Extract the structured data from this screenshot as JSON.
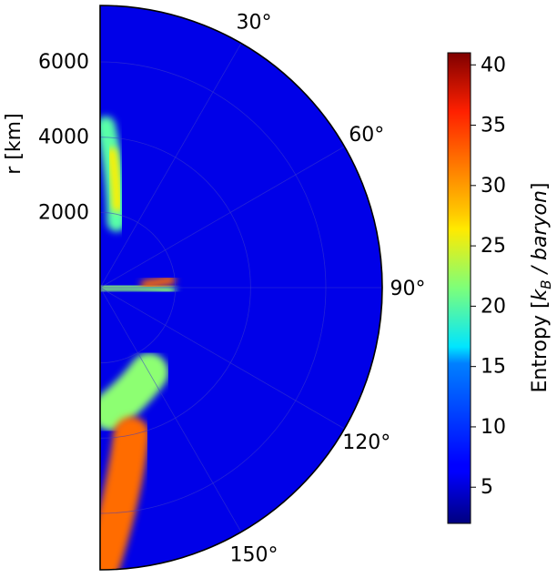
{
  "chart_data": {
    "type": "heatmap",
    "projection": "polar-half-plane",
    "title": "",
    "r_axis": {
      "label": "r [km]",
      "ticks": [
        2000,
        4000,
        6000
      ],
      "range": [
        0,
        7500
      ]
    },
    "theta_axis": {
      "unit": "degrees",
      "ticks": [
        "30°",
        "60°",
        "90°",
        "120°",
        "150°"
      ],
      "range": [
        0,
        180
      ]
    },
    "colorbar": {
      "label": "Entropy [kB / baryon]",
      "label_main": "Entropy [",
      "label_sub_k": "k",
      "label_sub_b": "B",
      "label_unit": " / baryon",
      "label_close": "]",
      "range": [
        2,
        41
      ],
      "ticks": [
        5,
        10,
        15,
        20,
        25,
        30,
        35,
        40
      ],
      "colormap": "jet"
    },
    "background_value": 6,
    "features": [
      {
        "r_km": [
          4300,
          1800
        ],
        "theta_deg": [
          2,
          14
        ],
        "value": 20
      },
      {
        "r_km": [
          3600,
          2200
        ],
        "theta_deg": [
          5,
          12
        ],
        "value": 27
      },
      {
        "r_km": [
          0,
          1900
        ],
        "theta_deg": [
          82,
          92
        ],
        "value": 22
      },
      {
        "r_km": [
          1900,
          1200
        ],
        "theta_deg": [
          84,
          86
        ],
        "value": 32
      },
      {
        "r_km": [
          2600,
          3300
        ],
        "theta_deg": [
          150,
          175
        ],
        "value": 22
      },
      {
        "r_km": [
          4000,
          7500
        ],
        "theta_deg": [
          168,
          180
        ],
        "value": 32
      }
    ]
  }
}
